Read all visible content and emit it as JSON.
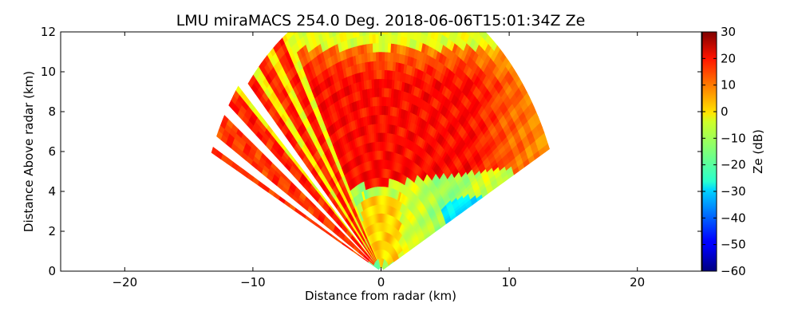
{
  "chart_data": {
    "type": "heatmap",
    "title": "LMU miraMACS 254.0 Deg. 2018-06-06T15:01:34Z  Ze",
    "xlabel": "Distance from radar (km)",
    "ylabel": "Distance Above radar  (km)",
    "xlim": [
      -25,
      25
    ],
    "ylim": [
      0,
      12
    ],
    "xticks": [
      -20,
      -10,
      0,
      10,
      20
    ],
    "yticks": [
      0,
      2,
      4,
      6,
      8,
      10,
      12
    ],
    "colorbar": {
      "label": "Ze (dB)",
      "range": [
        -60,
        30
      ],
      "ticks": [
        30,
        20,
        10,
        0,
        -10,
        -20,
        -30,
        -40,
        -50,
        -60
      ],
      "colormap": "jet"
    },
    "scan": {
      "kind": "RHI",
      "max_range_km": 14.5,
      "elevation_range_deg": [
        25,
        155
      ],
      "estimated_ze_regions_dB": [
        {
          "region": "upper cloud core, heights 4.5-11 km",
          "ze": 18
        },
        {
          "region": "cloud edges and top",
          "ze": -5
        },
        {
          "region": "lower layer right side, heights 1-4 km",
          "ze": -12
        },
        {
          "region": "weak echo pocket near x=7 km, y=3 km",
          "ze": -28
        },
        {
          "region": "low-elevation rays left side",
          "ze": 15
        }
      ]
    }
  }
}
